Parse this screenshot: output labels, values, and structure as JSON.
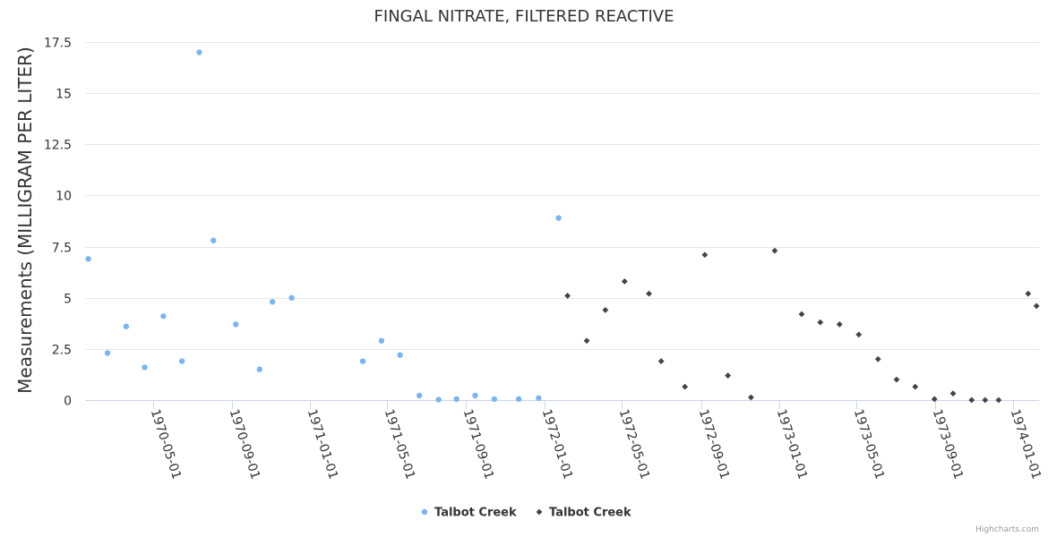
{
  "chart_data": {
    "type": "scatter",
    "title": "FINGAL NITRATE, FILTERED REACTIVE",
    "xlabel": "",
    "ylabel": "Measurements (MILLIGRAM PER LITER)",
    "ylim": [
      0,
      17.5
    ],
    "yticks": [
      0,
      2.5,
      5,
      7.5,
      10,
      12.5,
      15,
      17.5
    ],
    "ytick_labels": [
      "0",
      "2.5",
      "5",
      "7.5",
      "10",
      "12.5",
      "15",
      "17.5"
    ],
    "xlim": [
      "1970-01-15",
      "1974-02-10"
    ],
    "xticks": [
      "1970-05-01",
      "1970-09-01",
      "1971-01-01",
      "1971-05-01",
      "1971-09-01",
      "1972-01-01",
      "1972-05-01",
      "1972-09-01",
      "1973-01-01",
      "1973-05-01",
      "1973-09-01",
      "1974-01-01"
    ],
    "grid": true,
    "legend_position": "bottom-center",
    "series": [
      {
        "name": "Talbot Creek",
        "marker": "circle",
        "color": "#7cb5ec",
        "points": [
          {
            "x": "1970-01-20",
            "y": 6.9
          },
          {
            "x": "1970-02-19",
            "y": 2.3
          },
          {
            "x": "1970-03-20",
            "y": 3.6
          },
          {
            "x": "1970-04-18",
            "y": 1.6
          },
          {
            "x": "1970-05-17",
            "y": 4.1
          },
          {
            "x": "1970-06-15",
            "y": 1.9
          },
          {
            "x": "1970-07-12",
            "y": 17.0
          },
          {
            "x": "1970-08-03",
            "y": 7.8
          },
          {
            "x": "1970-09-07",
            "y": 3.7
          },
          {
            "x": "1970-10-14",
            "y": 1.5
          },
          {
            "x": "1970-11-03",
            "y": 4.8
          },
          {
            "x": "1970-12-03",
            "y": 5.0
          },
          {
            "x": "1971-03-24",
            "y": 1.9
          },
          {
            "x": "1971-04-22",
            "y": 2.9
          },
          {
            "x": "1971-05-21",
            "y": 2.2
          },
          {
            "x": "1971-06-20",
            "y": 0.22
          },
          {
            "x": "1971-07-20",
            "y": 0.02
          },
          {
            "x": "1971-08-17",
            "y": 0.05
          },
          {
            "x": "1971-09-15",
            "y": 0.22
          },
          {
            "x": "1971-10-15",
            "y": 0.05
          },
          {
            "x": "1971-11-22",
            "y": 0.05
          },
          {
            "x": "1971-12-23",
            "y": 0.1
          },
          {
            "x": "1972-01-23",
            "y": 8.9
          }
        ]
      },
      {
        "name": "Talbot Creek",
        "marker": "diamond",
        "color": "#434348",
        "points": [
          {
            "x": "1972-02-06",
            "y": 5.1
          },
          {
            "x": "1972-03-07",
            "y": 2.9
          },
          {
            "x": "1972-04-05",
            "y": 4.4
          },
          {
            "x": "1972-05-05",
            "y": 5.8
          },
          {
            "x": "1972-06-12",
            "y": 5.2
          },
          {
            "x": "1972-07-01",
            "y": 1.9
          },
          {
            "x": "1972-08-07",
            "y": 0.65
          },
          {
            "x": "1972-09-07",
            "y": 7.1
          },
          {
            "x": "1972-10-13",
            "y": 1.2
          },
          {
            "x": "1972-11-18",
            "y": 0.13
          },
          {
            "x": "1972-12-25",
            "y": 7.3
          },
          {
            "x": "1973-02-05",
            "y": 4.2
          },
          {
            "x": "1973-03-06",
            "y": 3.8
          },
          {
            "x": "1973-04-05",
            "y": 3.7
          },
          {
            "x": "1973-05-05",
            "y": 3.2
          },
          {
            "x": "1973-06-04",
            "y": 2.0
          },
          {
            "x": "1973-07-03",
            "y": 1.0
          },
          {
            "x": "1973-08-01",
            "y": 0.65
          },
          {
            "x": "1973-08-31",
            "y": 0.05
          },
          {
            "x": "1973-09-29",
            "y": 0.32
          },
          {
            "x": "1973-10-28",
            "y": 0.0
          },
          {
            "x": "1973-11-18",
            "y": 0.0
          },
          {
            "x": "1973-12-09",
            "y": 0.0
          },
          {
            "x": "1974-01-24",
            "y": 5.2
          },
          {
            "x": "1974-02-06",
            "y": 4.6
          }
        ]
      }
    ]
  },
  "credits": "Highcharts.com"
}
